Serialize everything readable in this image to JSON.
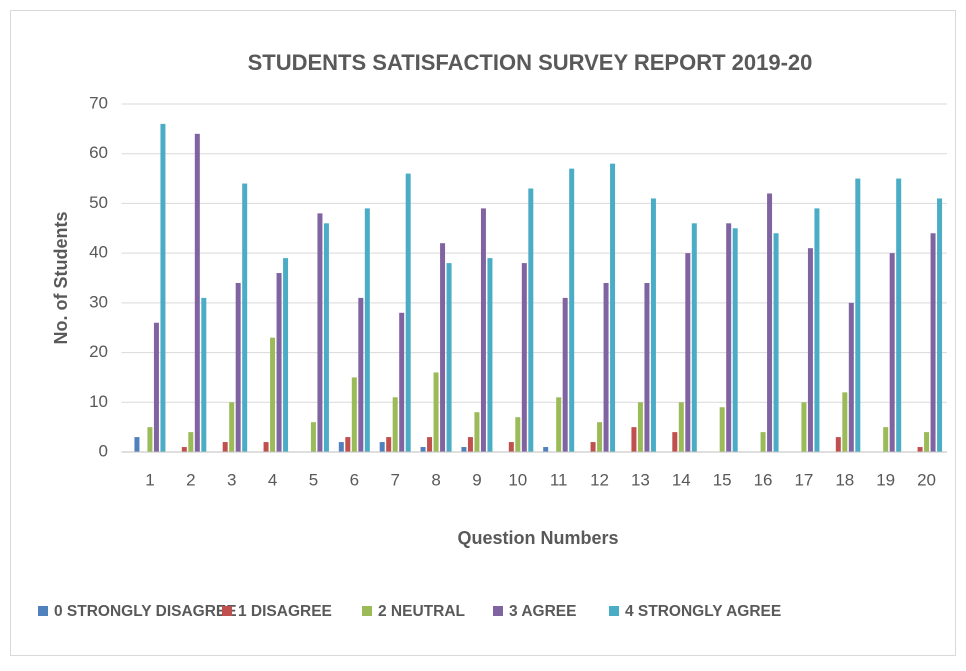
{
  "chart_data": {
    "type": "bar",
    "title": "STUDENTS SATISFACTION SURVEY REPORT 2019-20",
    "x_label": "Question Numbers",
    "y_label": "No. of Students",
    "categories": [
      "1",
      "2",
      "3",
      "4",
      "5",
      "6",
      "7",
      "8",
      "9",
      "10",
      "11",
      "12",
      "13",
      "14",
      "15",
      "16",
      "17",
      "18",
      "19",
      "20"
    ],
    "series": [
      {
        "name": "0 STRONGLY DISAGREE",
        "color": "#4f81bd",
        "values": [
          3,
          0,
          0,
          0,
          0,
          2,
          2,
          1,
          1,
          0,
          1,
          0,
          0,
          0,
          0,
          0,
          0,
          0,
          0,
          0
        ]
      },
      {
        "name": "1 DISAGREE",
        "color": "#c0504d",
        "values": [
          0,
          1,
          2,
          2,
          0,
          3,
          3,
          3,
          3,
          2,
          0,
          2,
          5,
          4,
          0,
          0,
          0,
          3,
          0,
          1
        ]
      },
      {
        "name": "2 NEUTRAL",
        "color": "#9bbb59",
        "values": [
          5,
          4,
          10,
          23,
          6,
          15,
          11,
          16,
          8,
          7,
          11,
          6,
          10,
          10,
          9,
          4,
          10,
          12,
          5,
          4
        ]
      },
      {
        "name": "3 AGREE",
        "color": "#8064a2",
        "values": [
          26,
          64,
          34,
          36,
          48,
          31,
          28,
          42,
          49,
          38,
          31,
          34,
          34,
          40,
          46,
          52,
          41,
          30,
          40,
          44
        ]
      },
      {
        "name": "4 STRONGLY AGREE",
        "color": "#4bacc6",
        "values": [
          66,
          31,
          54,
          39,
          46,
          49,
          56,
          38,
          39,
          53,
          57,
          58,
          51,
          46,
          45,
          44,
          49,
          55,
          55,
          51
        ]
      }
    ],
    "ylim": [
      0,
      70
    ],
    "yticks": [
      0,
      10,
      20,
      30,
      40,
      50,
      60,
      70
    ],
    "grid": true,
    "legend": "bottom"
  }
}
